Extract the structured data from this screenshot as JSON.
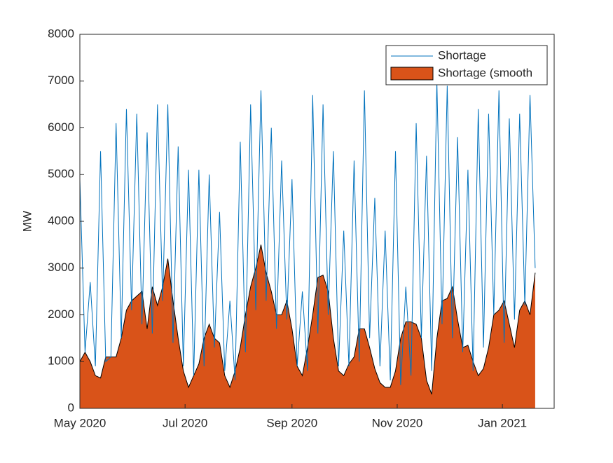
{
  "chart_data": {
    "type": "area-line",
    "ylabel": "MW",
    "x": [
      0,
      3,
      6,
      9,
      12,
      15,
      18,
      21,
      24,
      27,
      30,
      33,
      36,
      39,
      42,
      45,
      48,
      51,
      54,
      57,
      60,
      63,
      66,
      69,
      72,
      75,
      78,
      81,
      84,
      87,
      90,
      93,
      96,
      99,
      102,
      105,
      108,
      111,
      114,
      117,
      120,
      123,
      126,
      129,
      132,
      135,
      138,
      141,
      144,
      147,
      150,
      153,
      156,
      159,
      162,
      165,
      168,
      171,
      174,
      177,
      180,
      183,
      186,
      189,
      192,
      195,
      198,
      201,
      204,
      207,
      210,
      213,
      216,
      219,
      222,
      225,
      228,
      231,
      234,
      237,
      240,
      243,
      246,
      249,
      252,
      255,
      258,
      261,
      264
    ],
    "series": [
      {
        "name": "Shortage",
        "kind": "line",
        "color": "#0072bd",
        "values": [
          4900,
          1200,
          2700,
          900,
          5500,
          1000,
          1100,
          6100,
          1500,
          6400,
          2100,
          6300,
          1800,
          5900,
          1600,
          6500,
          2300,
          6500,
          1400,
          5600,
          900,
          5100,
          700,
          5100,
          900,
          5000,
          1300,
          4200,
          800,
          2300,
          600,
          5700,
          1200,
          6500,
          2100,
          6800,
          2300,
          6000,
          1700,
          5300,
          1900,
          4900,
          900,
          2500,
          800,
          6700,
          1600,
          6500,
          2000,
          5500,
          900,
          3800,
          900,
          5300,
          1000,
          6800,
          1500,
          4500,
          900,
          3800,
          600,
          5500,
          500,
          2600,
          700,
          6100,
          1500,
          5400,
          800,
          7000,
          1800,
          6900,
          1500,
          5800,
          1200,
          5100,
          800,
          6400,
          1300,
          6300,
          2000,
          6800,
          1400,
          6200,
          1900,
          6300,
          2200,
          6700,
          3000
        ]
      },
      {
        "name": "Shortage (smooth",
        "kind": "area",
        "color": "#d95319",
        "values": [
          1000,
          1200,
          1000,
          700,
          650,
          1100,
          1100,
          1100,
          1500,
          2100,
          2300,
          2400,
          2500,
          1700,
          2600,
          2200,
          2600,
          3200,
          2300,
          1500,
          800,
          450,
          700,
          950,
          1500,
          1800,
          1500,
          1400,
          700,
          450,
          800,
          1300,
          2000,
          2600,
          3000,
          3500,
          2900,
          2500,
          2000,
          2000,
          2300,
          1700,
          900,
          700,
          1300,
          2000,
          2800,
          2850,
          2500,
          1500,
          800,
          700,
          950,
          1100,
          1700,
          1700,
          1300,
          850,
          550,
          450,
          450,
          800,
          1500,
          1850,
          1850,
          1800,
          1500,
          600,
          300,
          1500,
          2300,
          2350,
          2600,
          1900,
          1300,
          1350,
          1000,
          700,
          850,
          1300,
          2000,
          2100,
          2300,
          1800,
          1300,
          2100,
          2300,
          2000,
          2900
        ]
      }
    ],
    "xlim": [
      0,
      275
    ],
    "xticks": [
      {
        "value": 0,
        "label": "May 2020"
      },
      {
        "value": 61,
        "label": "Jul 2020"
      },
      {
        "value": 123,
        "label": "Sep 2020"
      },
      {
        "value": 184,
        "label": "Nov 2020"
      },
      {
        "value": 245,
        "label": "Jan 2021"
      }
    ],
    "ylim": [
      0,
      8000
    ],
    "yticks": [
      0,
      1000,
      2000,
      3000,
      4000,
      5000,
      6000,
      7000,
      8000
    ],
    "grid": false,
    "legend": "northeast"
  }
}
